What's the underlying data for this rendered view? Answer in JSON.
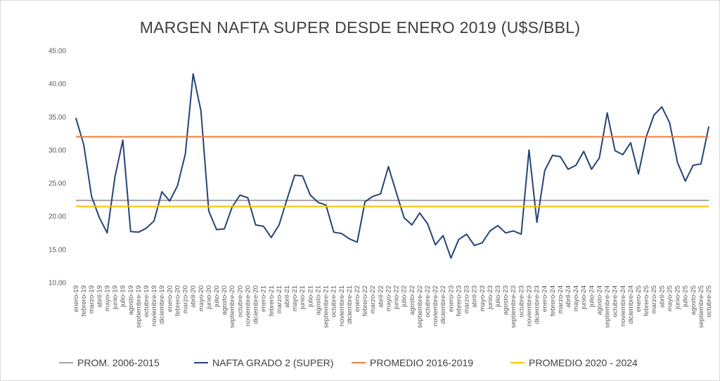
{
  "chart_data": {
    "type": "line",
    "title": "MARGEN NAFTA SUPER DESDE ENERO 2019 (U$S/BBL)",
    "xlabel": "",
    "ylabel": "",
    "ylim": [
      10,
      45
    ],
    "yticks": [
      "10.00",
      "15.00",
      "20.00",
      "25.00",
      "30.00",
      "35.00",
      "40.00",
      "45.00"
    ],
    "categories": [
      "enero-19",
      "febrero-19",
      "marzo-19",
      "abril-19",
      "mayo-19",
      "junio-19",
      "julio-19",
      "agosto-19",
      "septiembre-19",
      "octubre-19",
      "noviembre-19",
      "diciembre-19",
      "enero-20",
      "febrero-20",
      "marzo-20",
      "abril-20",
      "mayo-20",
      "junio-20",
      "julio-20",
      "agosto-20",
      "septiembre-20",
      "octubre-20",
      "noviembre-20",
      "diciembre-20",
      "enero-21",
      "febrero-21",
      "marzo-21",
      "abril-21",
      "mayo-21",
      "junio-21",
      "julio-21",
      "agosto-21",
      "septiembre-21",
      "octubre-21",
      "noviembre-21",
      "diciembre-21",
      "enero-22",
      "febrero-22",
      "marzo-22",
      "abril-22",
      "mayo-22",
      "junio-22",
      "julio-22",
      "agosto-22",
      "septiembre-22",
      "octubre-22",
      "noviembre-22",
      "diciembre-22",
      "enero-23",
      "febrero-23",
      "marzo-23",
      "abril-23",
      "mayo-23",
      "junio-23",
      "julio-23",
      "agosto-23",
      "septiembre-23",
      "octubre-23",
      "noviembre-23",
      "diciembre-23",
      "enero-24",
      "febrero-24",
      "marzo-24",
      "abril-24",
      "mayo-24",
      "junio-24",
      "julio-24",
      "agosto-24",
      "septiembre-24",
      "octubre-24",
      "noviembre-24",
      "diciembre-24",
      "enero-25",
      "febrero-25",
      "marzo-25",
      "abril-25",
      "mayo-25",
      "junio-25",
      "julio-25",
      "agosto-25",
      "septiembre-25",
      "octubre-25"
    ],
    "series": [
      {
        "name": "PROM. 2006-2015",
        "color": "#a5a5a5",
        "constant": 22.4
      },
      {
        "name": "NAFTA GRADO 2 (SUPER)",
        "color": "#264478",
        "values": [
          34.8,
          30.8,
          23.0,
          19.8,
          17.5,
          26.0,
          31.5,
          17.7,
          17.6,
          18.2,
          19.3,
          23.7,
          22.3,
          24.6,
          29.4,
          41.5,
          35.9,
          20.8,
          18.0,
          18.1,
          21.4,
          23.2,
          22.8,
          18.7,
          18.5,
          16.8,
          18.7,
          22.5,
          26.2,
          26.1,
          23.2,
          22.1,
          21.7,
          17.6,
          17.4,
          16.6,
          16.1,
          22.2,
          23.0,
          23.4,
          27.5,
          23.6,
          19.8,
          18.7,
          20.5,
          18.9,
          15.7,
          17.1,
          13.7,
          16.5,
          17.3,
          15.6,
          16.0,
          17.8,
          18.6,
          17.5,
          17.8,
          17.3,
          30.0,
          19.1,
          26.9,
          29.2,
          29.0,
          27.1,
          27.7,
          29.8,
          27.1,
          28.8,
          35.6,
          29.9,
          29.3,
          31.1,
          26.4,
          32.0,
          35.3,
          36.5,
          34.1,
          28.1,
          25.3,
          27.7,
          27.9,
          33.5
        ]
      },
      {
        "name": "PROMEDIO 2016-2019",
        "color": "#ed7d31",
        "constant": 32.0
      },
      {
        "name": "PROMEDIO 2020 - 2024",
        "color": "#ffc000",
        "constant": 21.5
      }
    ],
    "grid": false,
    "legend_position": "bottom"
  }
}
